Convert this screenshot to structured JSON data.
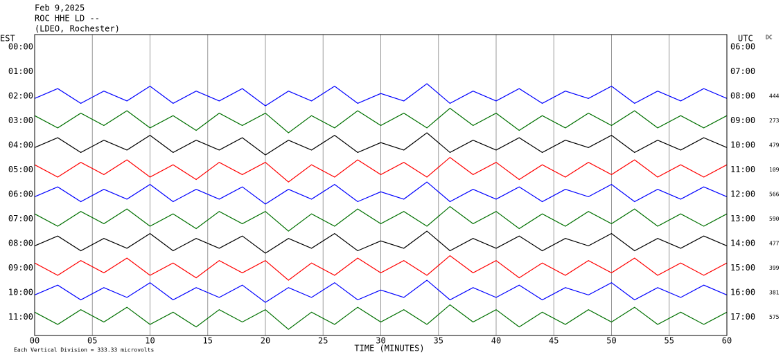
{
  "chart_data": {
    "type": "line",
    "title": "Feb 9,2025",
    "subtitle": "ROC HHE LD --",
    "station": "(LDEO, Rochester)",
    "y_label": "EST",
    "y2_label": "UTC",
    "dc_title": "DC",
    "x_label": "TIME (MINUTES)",
    "note": "Each Vertical Division =  333.33 microvolts",
    "xlim": [
      0,
      60
    ],
    "xticks": [
      {
        "value": 0,
        "label": "00"
      },
      {
        "value": 5,
        "label": "05"
      },
      10,
      15,
      20,
      25,
      30,
      35,
      40,
      45,
      50,
      55,
      60
    ],
    "ylim": [
      -0.5,
      11.75
    ],
    "yticks": [
      {
        "value": 0,
        "label": "00:00"
      },
      {
        "value": 1,
        "label": "01:00"
      },
      {
        "value": 2,
        "label": "02:00"
      },
      {
        "value": 3,
        "label": "03:00"
      },
      {
        "value": 4,
        "label": "04:00"
      },
      {
        "value": 5,
        "label": "05:00"
      },
      {
        "value": 6,
        "label": "06:00"
      },
      {
        "value": 7,
        "label": "07:00"
      },
      {
        "value": 8,
        "label": "08:00"
      },
      {
        "value": 9,
        "label": "09:00"
      },
      {
        "value": 10,
        "label": "10:00"
      },
      {
        "value": 11,
        "label": "11:00"
      }
    ],
    "y2lim": [
      -0.5,
      11.75
    ],
    "y2ticks": [
      {
        "value": 0,
        "label": "06:00"
      },
      {
        "value": 1,
        "label": "07:00"
      },
      {
        "value": 2,
        "label": "08:00"
      },
      {
        "value": 3,
        "label": "09:00"
      },
      {
        "value": 4,
        "label": "10:00"
      },
      {
        "value": 5,
        "label": "11:00"
      },
      {
        "value": 6,
        "label": "12:00"
      },
      {
        "value": 7,
        "label": "13:00"
      },
      {
        "value": 8,
        "label": "14:00"
      },
      {
        "value": 9,
        "label": "15:00"
      },
      {
        "value": 10,
        "label": "16:00"
      },
      {
        "value": 11,
        "label": "17:00"
      }
    ],
    "grid": true,
    "x": [
      0,
      2,
      4,
      6,
      8,
      10,
      12,
      14,
      16,
      18,
      20,
      22,
      24,
      26,
      28,
      30,
      32,
      34,
      36,
      38,
      40,
      42,
      44,
      46,
      48,
      50,
      52,
      54,
      56,
      58,
      60
    ],
    "series": [
      {
        "color": "#0000ff",
        "dc": 444,
        "values": [
          2.1,
          1.7,
          2.3,
          1.8,
          2.2,
          1.6,
          2.3,
          1.8,
          2.2,
          1.7,
          2.4,
          1.8,
          2.2,
          1.6,
          2.3,
          1.9,
          2.2,
          1.5,
          2.3,
          1.8,
          2.2,
          1.7,
          2.3,
          1.8,
          2.1,
          1.6,
          2.3,
          1.8,
          2.2,
          1.7,
          2.1
        ]
      },
      {
        "color": "#007000",
        "dc": 273,
        "values": [
          2.8,
          3.3,
          2.7,
          3.2,
          2.6,
          3.3,
          2.8,
          3.4,
          2.7,
          3.2,
          2.7,
          3.5,
          2.8,
          3.3,
          2.6,
          3.2,
          2.7,
          3.3,
          2.5,
          3.2,
          2.7,
          3.4,
          2.8,
          3.3,
          2.7,
          3.2,
          2.6,
          3.3,
          2.8,
          3.3,
          2.8
        ]
      },
      {
        "color": "#000000",
        "dc": 479,
        "values": [
          4.1,
          3.7,
          4.3,
          3.8,
          4.2,
          3.6,
          4.3,
          3.8,
          4.2,
          3.7,
          4.4,
          3.8,
          4.2,
          3.6,
          4.3,
          3.9,
          4.2,
          3.5,
          4.3,
          3.8,
          4.2,
          3.7,
          4.3,
          3.8,
          4.1,
          3.6,
          4.3,
          3.8,
          4.2,
          3.7,
          4.1
        ]
      },
      {
        "color": "#ff0000",
        "dc": 109,
        "values": [
          4.8,
          5.3,
          4.7,
          5.2,
          4.6,
          5.3,
          4.8,
          5.4,
          4.7,
          5.2,
          4.7,
          5.5,
          4.8,
          5.3,
          4.6,
          5.2,
          4.7,
          5.3,
          4.5,
          5.2,
          4.7,
          5.4,
          4.8,
          5.3,
          4.7,
          5.2,
          4.6,
          5.3,
          4.8,
          5.3,
          4.8
        ]
      },
      {
        "color": "#0000ff",
        "dc": 566,
        "values": [
          6.1,
          5.7,
          6.3,
          5.8,
          6.2,
          5.6,
          6.3,
          5.8,
          6.2,
          5.7,
          6.4,
          5.8,
          6.2,
          5.6,
          6.3,
          5.9,
          6.2,
          5.5,
          6.3,
          5.8,
          6.2,
          5.7,
          6.3,
          5.8,
          6.1,
          5.6,
          6.3,
          5.8,
          6.2,
          5.7,
          6.1
        ]
      },
      {
        "color": "#007000",
        "dc": 590,
        "values": [
          6.8,
          7.3,
          6.7,
          7.2,
          6.6,
          7.3,
          6.8,
          7.4,
          6.7,
          7.2,
          6.7,
          7.5,
          6.8,
          7.3,
          6.6,
          7.2,
          6.7,
          7.3,
          6.5,
          7.2,
          6.7,
          7.4,
          6.8,
          7.3,
          6.7,
          7.2,
          6.6,
          7.3,
          6.8,
          7.3,
          6.8
        ]
      },
      {
        "color": "#000000",
        "dc": 477,
        "values": [
          8.1,
          7.7,
          8.3,
          7.8,
          8.2,
          7.6,
          8.3,
          7.8,
          8.2,
          7.7,
          8.4,
          7.8,
          8.2,
          7.6,
          8.3,
          7.9,
          8.2,
          7.5,
          8.3,
          7.8,
          8.2,
          7.7,
          8.3,
          7.8,
          8.1,
          7.6,
          8.3,
          7.8,
          8.2,
          7.7,
          8.1
        ]
      },
      {
        "color": "#ff0000",
        "dc": 399,
        "values": [
          8.8,
          9.3,
          8.7,
          9.2,
          8.6,
          9.3,
          8.8,
          9.4,
          8.7,
          9.2,
          8.7,
          9.5,
          8.8,
          9.3,
          8.6,
          9.2,
          8.7,
          9.3,
          8.5,
          9.2,
          8.7,
          9.4,
          8.8,
          9.3,
          8.7,
          9.2,
          8.6,
          9.3,
          8.8,
          9.3,
          8.8
        ]
      },
      {
        "color": "#0000ff",
        "dc": 381,
        "values": [
          10.1,
          9.7,
          10.3,
          9.8,
          10.2,
          9.6,
          10.3,
          9.8,
          10.2,
          9.7,
          10.4,
          9.8,
          10.2,
          9.6,
          10.3,
          9.9,
          10.2,
          9.5,
          10.3,
          9.8,
          10.2,
          9.7,
          10.3,
          9.8,
          10.1,
          9.6,
          10.3,
          9.8,
          10.2,
          9.7,
          10.1
        ]
      },
      {
        "color": "#007000",
        "dc": 575,
        "values": [
          10.8,
          11.3,
          10.7,
          11.2,
          10.6,
          11.3,
          10.8,
          11.4,
          10.7,
          11.2,
          10.7,
          11.5,
          10.8,
          11.3,
          10.6,
          11.2,
          10.7,
          11.3,
          10.5,
          11.2,
          10.7,
          11.4,
          10.8,
          11.3,
          10.7,
          11.2,
          10.6,
          11.3,
          10.8,
          11.3,
          10.8
        ]
      }
    ]
  }
}
